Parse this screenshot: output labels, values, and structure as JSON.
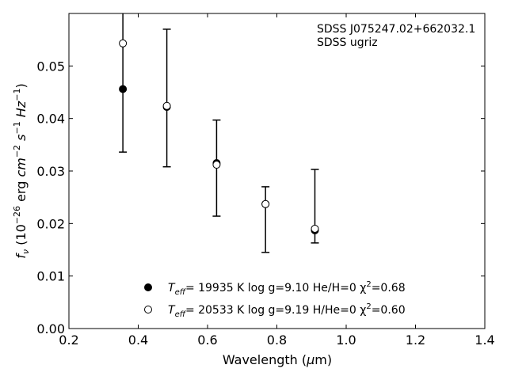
{
  "chart_data": {
    "type": "scatter",
    "xlabel": "Wavelength (μm)",
    "ylabel": "f_ν (10^-26 erg cm^-2 s^-1 Hz^-1)",
    "xlim": [
      0.2,
      1.4
    ],
    "ylim": [
      0.0,
      0.06
    ],
    "xticks": [
      "0.2",
      "0.4",
      "0.6",
      "0.8",
      "1.0",
      "1.2",
      "1.4"
    ],
    "yticks": [
      "0.00",
      "0.01",
      "0.02",
      "0.03",
      "0.04",
      "0.05"
    ],
    "xtick_values": [
      0.2,
      0.4,
      0.6,
      0.8,
      1.0,
      1.2,
      1.4
    ],
    "ytick_values": [
      0.0,
      0.01,
      0.02,
      0.03,
      0.04,
      0.05
    ],
    "grid": false,
    "annotations": [
      "SDSS J075247.02+662032.1",
      "SDSS ugriz"
    ],
    "observed": {
      "x": [
        0.3557,
        0.4825,
        0.6261,
        0.7672,
        0.9097
      ],
      "y": [
        0.0456,
        0.0424,
        0.0316,
        0.0236,
        0.019
      ],
      "err_low": [
        0.0336,
        0.0308,
        0.0214,
        0.0145,
        0.0163
      ],
      "err_high": [
        0.06,
        0.057,
        0.0397,
        0.027,
        0.0303
      ]
    },
    "series": [
      {
        "marker": "filled",
        "legend": {
          "pre": "T",
          "sub": "eff",
          "post": "= 19935 K  log g=9.10  He/H=0  χ",
          "sup": "2",
          "end": "=0.68"
        },
        "x": [
          0.3557,
          0.4825,
          0.6261,
          0.7672,
          0.9097
        ],
        "y": [
          0.0456,
          0.0422,
          0.0315,
          0.0237,
          0.0187
        ]
      },
      {
        "marker": "open",
        "legend": {
          "pre": "T",
          "sub": "eff",
          "post": "= 20533 K  log g=9.19  H/He=0  χ",
          "sup": "2",
          "end": "=0.60"
        },
        "x": [
          0.3557,
          0.4825,
          0.6261,
          0.7672,
          0.9097
        ],
        "y": [
          0.0543,
          0.0424,
          0.0312,
          0.0237,
          0.019
        ]
      }
    ],
    "legend_position": "lower-center"
  }
}
